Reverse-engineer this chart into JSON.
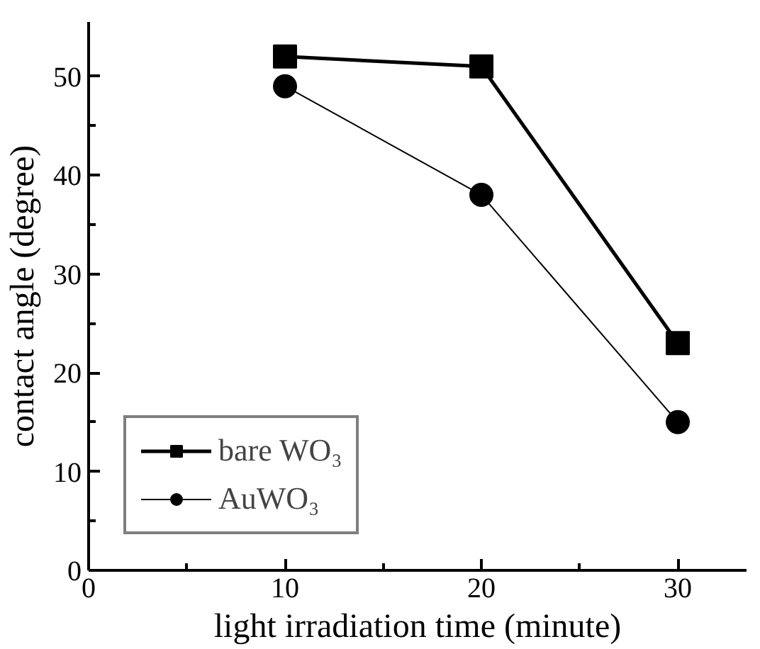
{
  "chart_data": {
    "type": "line",
    "xlabel": "light irradiation time (minute)",
    "ylabel": "contact angle (degree)",
    "x": [
      10,
      20,
      30
    ],
    "series": [
      {
        "name": "bare WO₃",
        "color": "#000000",
        "values": [
          52,
          51,
          23
        ],
        "marker": "square"
      },
      {
        "name": "AuWO₃",
        "color": "#000000",
        "values": [
          49,
          38,
          15
        ],
        "marker": "circle"
      }
    ],
    "xlim": [
      0,
      33.5
    ],
    "ylim": [
      0,
      55.5
    ],
    "xticks": [
      0,
      10,
      20,
      30
    ],
    "yticks": [
      0,
      10,
      20,
      30,
      40,
      50
    ],
    "grid": false,
    "legend": "bottom left",
    "line_style": "solid"
  }
}
